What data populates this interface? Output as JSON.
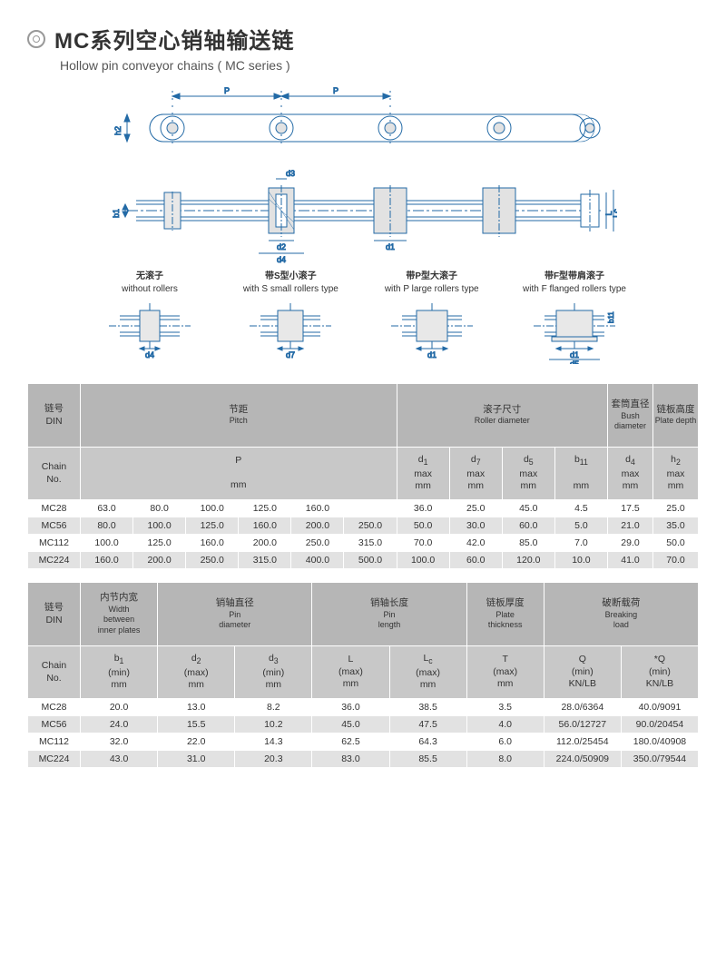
{
  "title_cn": "MC系列空心销轴输送链",
  "title_en": "Hollow pin conveyor chains ( MC series )",
  "diagram_labels": {
    "P": "P",
    "h2": "h2",
    "b1": "b1",
    "d3": "d3",
    "d2": "d2",
    "d4": "d4",
    "d1": "d1",
    "L": "L",
    "Lc": "Lc"
  },
  "variants": [
    {
      "cn": "无滚子",
      "en": "without rollers",
      "dim": "d4"
    },
    {
      "cn": "带S型小滚子",
      "en": "with S small rollers type",
      "dim": "d7"
    },
    {
      "cn": "带P型大滚子",
      "en": "with P large rollers type",
      "dim": "d1"
    },
    {
      "cn": "带F型带肩滚子",
      "en": "with F flanged rollers type",
      "dim": "d1",
      "dim2": "d5",
      "side": "b11"
    }
  ],
  "table1": {
    "colors": {
      "hdr": "#b6b6b6",
      "sub": "#c8c8c8",
      "row_odd": "#ffffff",
      "row_even": "#e2e2e2"
    },
    "groups": [
      {
        "cn": "链号",
        "en": "DIN",
        "sub": "Chain\nNo."
      },
      {
        "cn": "节距",
        "en": "Pitch"
      },
      {
        "cn": "滚子尺寸",
        "en": "Roller diameter"
      },
      {
        "cn": "套筒直径",
        "en": "Bush\ndiameter"
      },
      {
        "cn": "链板高度",
        "en": "Plate\ndepth"
      }
    ],
    "cols_sub": [
      "P\nmm",
      "d₁\nmax\nmm",
      "d₇\nmax\nmm",
      "d₅\nmax\nmm",
      "b₁₁\nmm",
      "d₄\nmax\nmm",
      "h₂\nmax\nmm"
    ],
    "rows": [
      {
        "id": "MC28",
        "p": [
          "63.0",
          "80.0",
          "100.0",
          "125.0",
          "160.0",
          ""
        ],
        "d1": "36.0",
        "d7": "25.0",
        "d5": "45.0",
        "b11": "4.5",
        "d4": "17.5",
        "h2": "25.0"
      },
      {
        "id": "MC56",
        "p": [
          "80.0",
          "100.0",
          "125.0",
          "160.0",
          "200.0",
          "250.0"
        ],
        "d1": "50.0",
        "d7": "30.0",
        "d5": "60.0",
        "b11": "5.0",
        "d4": "21.0",
        "h2": "35.0"
      },
      {
        "id": "MC112",
        "p": [
          "100.0",
          "125.0",
          "160.0",
          "200.0",
          "250.0",
          "315.0"
        ],
        "d1": "70.0",
        "d7": "42.0",
        "d5": "85.0",
        "b11": "7.0",
        "d4": "29.0",
        "h2": "50.0"
      },
      {
        "id": "MC224",
        "p": [
          "160.0",
          "200.0",
          "250.0",
          "315.0",
          "400.0",
          "500.0"
        ],
        "d1": "100.0",
        "d7": "60.0",
        "d5": "120.0",
        "b11": "10.0",
        "d4": "41.0",
        "h2": "70.0"
      }
    ]
  },
  "table2": {
    "groups": [
      {
        "cn": "链号",
        "en": "DIN",
        "sub": "Chain\nNo."
      },
      {
        "cn": "内节内宽",
        "en": "Width\nbetween\ninner plates"
      },
      {
        "cn": "销轴直径",
        "en": "Pin\ndiameter"
      },
      {
        "cn": "销轴长度",
        "en": "Pin\nlength"
      },
      {
        "cn": "链板厚度",
        "en": "Plate\nthickness"
      },
      {
        "cn": "破断载荷",
        "en": "Breaking\nload"
      }
    ],
    "cols_sub": [
      "b₁\n(min)\nmm",
      "d₂\n(max)\nmm",
      "d₃\n(min)\nmm",
      "L\n(max)\nmm",
      "Lc\n(max)\nmm",
      "T\n(max)\nmm",
      "Q\n(min)\nKN/LB",
      "*Q\n(min)\nKN/LB"
    ],
    "rows": [
      {
        "id": "MC28",
        "b1": "20.0",
        "d2": "13.0",
        "d3": "8.2",
        "L": "36.0",
        "Lc": "38.5",
        "T": "3.5",
        "Q": "28.0/6364",
        "Qs": "40.0/9091"
      },
      {
        "id": "MC56",
        "b1": "24.0",
        "d2": "15.5",
        "d3": "10.2",
        "L": "45.0",
        "Lc": "47.5",
        "T": "4.0",
        "Q": "56.0/12727",
        "Qs": "90.0/20454"
      },
      {
        "id": "MC112",
        "b1": "32.0",
        "d2": "22.0",
        "d3": "14.3",
        "L": "62.5",
        "Lc": "64.3",
        "T": "6.0",
        "Q": "112.0/25454",
        "Qs": "180.0/40908"
      },
      {
        "id": "MC224",
        "b1": "43.0",
        "d2": "31.0",
        "d3": "20.3",
        "L": "83.0",
        "Lc": "85.5",
        "T": "8.0",
        "Q": "224.0/50909",
        "Qs": "350.0/79544"
      }
    ]
  },
  "stroke": "#236aa6"
}
